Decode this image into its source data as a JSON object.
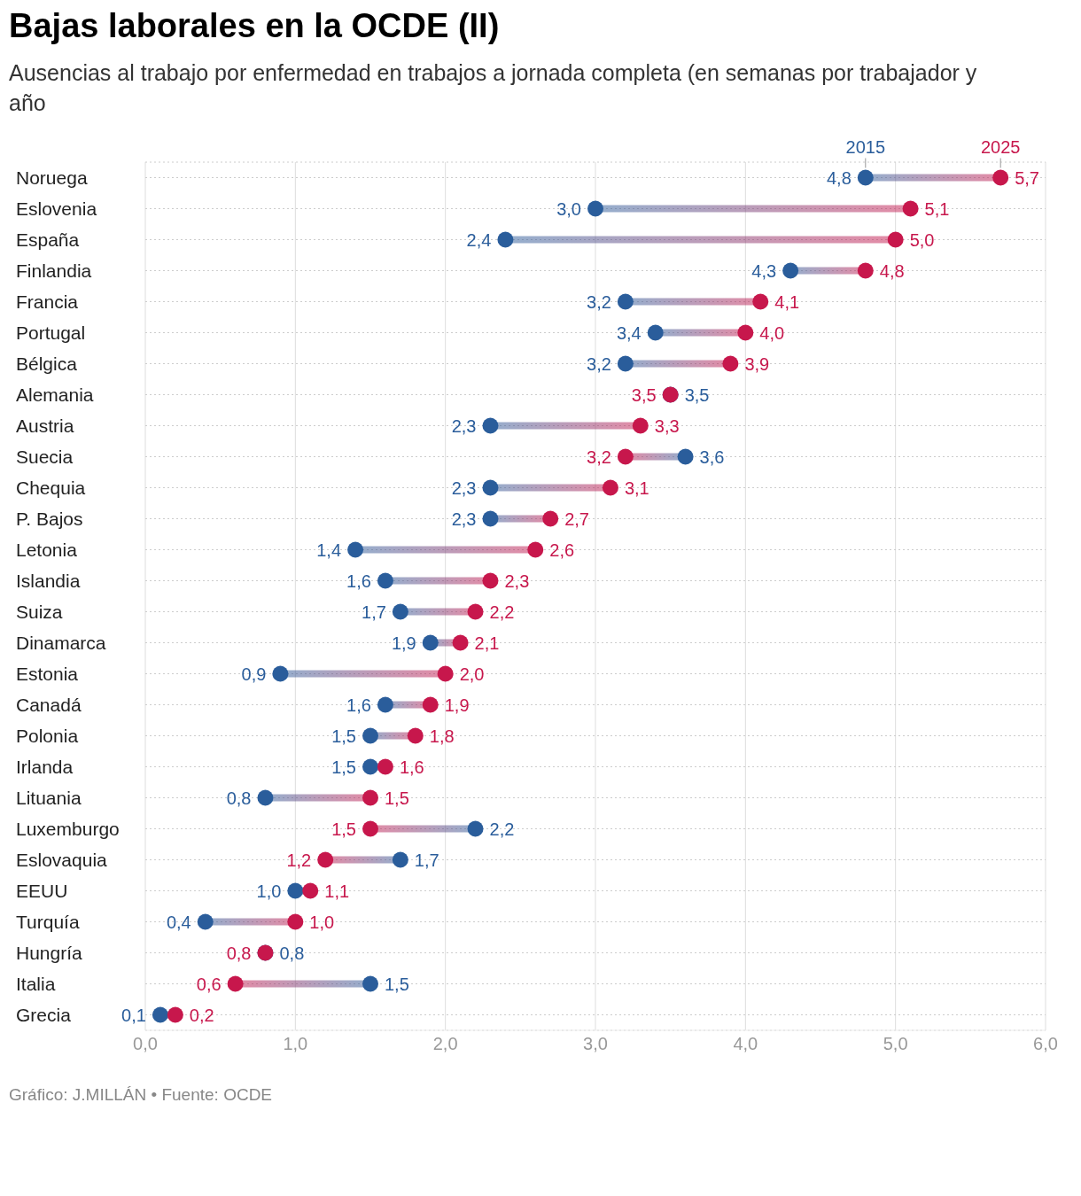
{
  "chart_data": {
    "type": "scatter",
    "orientation": "horizontal",
    "title": "Bajas laborales en la OCDE (II)",
    "subtitle": "Ausencias al trabajo por enfermedad en trabajos a jornada completa (en semanas por trabajador y año",
    "annotations": [
      "Gráfico: J.MILLÁN • Fuente: OCDE"
    ],
    "categories": [
      "Noruega",
      "Eslovenia",
      "España",
      "Finlandia",
      "Francia",
      "Portugal",
      "Bélgica",
      "Alemania",
      "Austria",
      "Suecia",
      "Chequia",
      "P. Bajos",
      "Letonia",
      "Islandia",
      "Suiza",
      "Dinamarca",
      "Estonia",
      "Canadá",
      "Polonia",
      "Irlanda",
      "Lituania",
      "Luxemburgo",
      "Eslovaquia",
      "EEUU",
      "Turquía",
      "Hungría",
      "Italia",
      "Grecia"
    ],
    "series": [
      {
        "name": "2015",
        "color": "#2a5d9b",
        "values": [
          4.8,
          3.0,
          2.4,
          4.3,
          3.2,
          3.4,
          3.2,
          3.5,
          2.3,
          3.6,
          2.3,
          2.3,
          1.4,
          1.6,
          1.7,
          1.9,
          0.9,
          1.6,
          1.5,
          1.5,
          0.8,
          2.2,
          1.7,
          1.0,
          0.4,
          0.8,
          1.5,
          0.1
        ],
        "value_labels": [
          "4,8",
          "3,0",
          "2,4",
          "4,3",
          "3,2",
          "3,4",
          "3,2",
          "3,5",
          "2,3",
          "3,6",
          "2,3",
          "2,3",
          "1,4",
          "1,6",
          "1,7",
          "1,9",
          "0,9",
          "1,6",
          "1,5",
          "1,5",
          "0,8",
          "2,2",
          "1,7",
          "1,0",
          "0,4",
          "0,8",
          "1,5",
          "0,1"
        ]
      },
      {
        "name": "2025",
        "color": "#c7174c",
        "values": [
          5.7,
          5.1,
          5.0,
          4.8,
          4.1,
          4.0,
          3.9,
          3.5,
          3.3,
          3.2,
          3.1,
          2.7,
          2.6,
          2.3,
          2.2,
          2.1,
          2.0,
          1.9,
          1.8,
          1.6,
          1.5,
          1.5,
          1.2,
          1.1,
          1.0,
          0.8,
          0.6,
          0.2
        ],
        "value_labels": [
          "5,7",
          "5,1",
          "5,0",
          "4,8",
          "4,1",
          "4,0",
          "3,9",
          "3,5",
          "3,3",
          "3,2",
          "3,1",
          "2,7",
          "2,6",
          "2,3",
          "2,2",
          "2,1",
          "2,0",
          "1,9",
          "1,8",
          "1,6",
          "1,5",
          "1,5",
          "1,2",
          "1,1",
          "1,0",
          "0,8",
          "0,6",
          "0,2"
        ]
      }
    ],
    "xlim": [
      0,
      6
    ],
    "xticks": [
      {
        "value": 0,
        "label": "0,0"
      },
      {
        "value": 1,
        "label": "1,0"
      },
      {
        "value": 2,
        "label": "2,0"
      },
      {
        "value": 3,
        "label": "3,0"
      },
      {
        "value": 4,
        "label": "4,0"
      },
      {
        "value": 5,
        "label": "5,0"
      },
      {
        "value": 6,
        "label": "6,0"
      }
    ],
    "grid": true,
    "legend": false,
    "marker": "circle"
  }
}
